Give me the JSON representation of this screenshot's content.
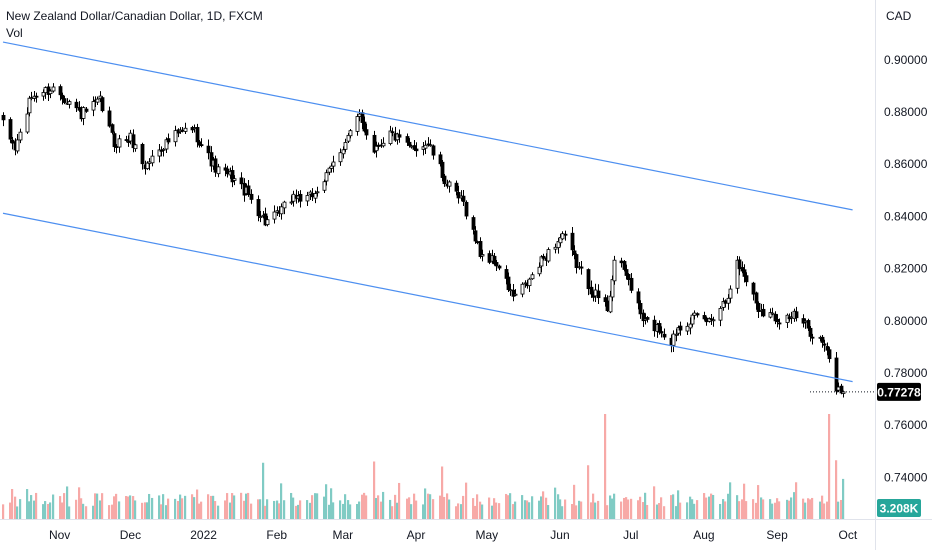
{
  "chart_data": {
    "type": "candlestick",
    "title": "New Zealand Dollar/Canadian Dollar, 1D, FXCM",
    "volume_label": "Vol",
    "currency_label": "CAD",
    "price_axis": {
      "ylim": [
        0.7505,
        0.9108
      ],
      "ticks": [
        "0.90000",
        "0.88000",
        "0.86000",
        "0.84000",
        "0.82000",
        "0.80000",
        "0.78000",
        "0.76000",
        "0.74000"
      ]
    },
    "time_axis": {
      "labels": [
        "Nov",
        "Dec",
        "2022",
        "Feb",
        "Mar",
        "Apr",
        "May",
        "Jun",
        "Jul",
        "Aug",
        "Sep",
        "Oct"
      ]
    },
    "last_price": {
      "label": "0.77278",
      "value": 0.77278
    },
    "last_volume": {
      "label": "3.208K"
    },
    "channel_lines": [
      {
        "name": "upper",
        "points": [
          [
            "2021-10-08",
            0.9068
          ],
          [
            "2022-10-03",
            0.8425
          ]
        ]
      },
      {
        "name": "lower",
        "points": [
          [
            "2021-10-08",
            0.8412
          ],
          [
            "2022-10-03",
            0.7767
          ]
        ]
      }
    ],
    "series": [
      {
        "name": "NZD/CAD daily close (approx.)",
        "anchors": [
          [
            "2021-10-08",
            0.875
          ],
          [
            "2021-10-13",
            0.866
          ],
          [
            "2021-10-20",
            0.886
          ],
          [
            "2021-10-29",
            0.889
          ],
          [
            "2021-11-04",
            0.885
          ],
          [
            "2021-11-10",
            0.879
          ],
          [
            "2021-11-18",
            0.884
          ],
          [
            "2021-11-24",
            0.868
          ],
          [
            "2021-12-01",
            0.87
          ],
          [
            "2021-12-07",
            0.859
          ],
          [
            "2021-12-13",
            0.866
          ],
          [
            "2021-12-20",
            0.871
          ],
          [
            "2021-12-27",
            0.874
          ],
          [
            "2022-01-06",
            0.858
          ],
          [
            "2022-01-13",
            0.855
          ],
          [
            "2022-01-20",
            0.848
          ],
          [
            "2022-01-27",
            0.838
          ],
          [
            "2022-02-01",
            0.84
          ],
          [
            "2022-02-08",
            0.848
          ],
          [
            "2022-02-14",
            0.846
          ],
          [
            "2022-02-22",
            0.855
          ],
          [
            "2022-03-02",
            0.869
          ],
          [
            "2022-03-08",
            0.878
          ],
          [
            "2022-03-14",
            0.866
          ],
          [
            "2022-03-21",
            0.872
          ],
          [
            "2022-03-29",
            0.866
          ],
          [
            "2022-04-06",
            0.868
          ],
          [
            "2022-04-14",
            0.852
          ],
          [
            "2022-04-21",
            0.845
          ],
          [
            "2022-04-28",
            0.826
          ],
          [
            "2022-05-05",
            0.822
          ],
          [
            "2022-05-12",
            0.809
          ],
          [
            "2022-05-18",
            0.814
          ],
          [
            "2022-05-25",
            0.824
          ],
          [
            "2022-06-02",
            0.833
          ],
          [
            "2022-06-09",
            0.82
          ],
          [
            "2022-06-15",
            0.811
          ],
          [
            "2022-06-21",
            0.805
          ],
          [
            "2022-06-24",
            0.823
          ],
          [
            "2022-06-29",
            0.818
          ],
          [
            "2022-07-06",
            0.8
          ],
          [
            "2022-07-13",
            0.797
          ],
          [
            "2022-07-18",
            0.792
          ],
          [
            "2022-07-21",
            0.798
          ],
          [
            "2022-07-27",
            0.801
          ],
          [
            "2022-08-03",
            0.8
          ],
          [
            "2022-08-10",
            0.808
          ],
          [
            "2022-08-15",
            0.822
          ],
          [
            "2022-08-19",
            0.816
          ],
          [
            "2022-08-24",
            0.805
          ],
          [
            "2022-09-01",
            0.801
          ],
          [
            "2022-09-08",
            0.802
          ],
          [
            "2022-09-14",
            0.797
          ],
          [
            "2022-09-20",
            0.792
          ],
          [
            "2022-09-23",
            0.785
          ],
          [
            "2022-09-26",
            0.774
          ],
          [
            "2022-09-29",
            0.7728
          ]
        ]
      },
      {
        "name": "Volume (approx., K)",
        "spikes": [
          [
            "2022-01-26",
            4.5
          ],
          [
            "2022-03-14",
            4.6
          ],
          [
            "2022-04-12",
            4.2
          ],
          [
            "2022-06-13",
            4.3
          ],
          [
            "2022-06-20",
            8.4
          ],
          [
            "2022-09-23",
            8.4
          ],
          [
            "2022-09-26",
            4.7
          ],
          [
            "2022-09-29",
            3.208
          ]
        ]
      }
    ]
  }
}
